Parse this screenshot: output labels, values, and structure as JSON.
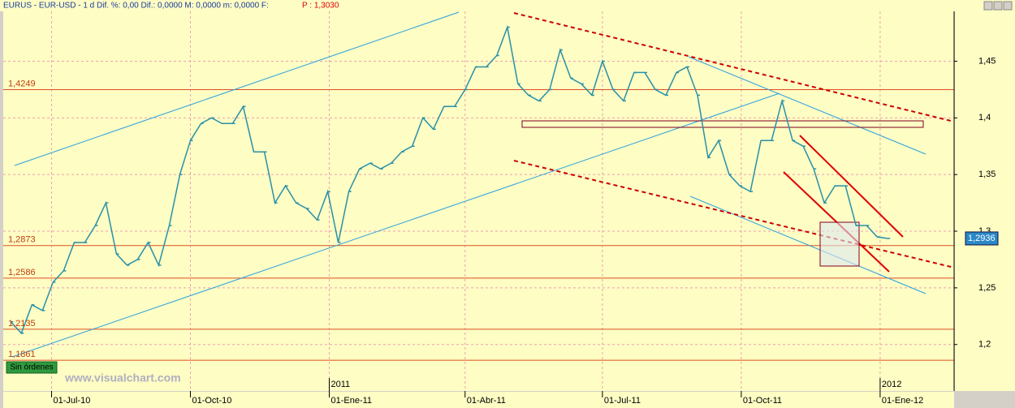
{
  "header": {
    "symbol": "EURUS - EUR-USD - 1 d  Dif. %: 0,00  Dif.: 0,0000  M: 0,0000  m: 0,0000  F:",
    "price": "P : 1,3030"
  },
  "watermark": "www.visualchart.com",
  "orders_badge": "Sin órdenes",
  "chart_data": {
    "type": "line",
    "color": "#2a90a8",
    "xlim": [
      "2010-05-30",
      "2012-02-19"
    ],
    "xticks": [
      {
        "value": "2010-07-01",
        "label": "01-Jul-10"
      },
      {
        "value": "2010-10-01",
        "label": "01-Oct-10"
      },
      {
        "value": "2011-01-01",
        "label": "01-Ene-11"
      },
      {
        "value": "2011-04-01",
        "label": "01-Abr-11"
      },
      {
        "value": "2011-07-01",
        "label": "01-Jul-11"
      },
      {
        "value": "2011-10-01",
        "label": "01-Oct-11"
      },
      {
        "value": "2012-01-01",
        "label": "01-Ene-12"
      }
    ],
    "year_labels": [
      {
        "value": "2011-01-01",
        "label": "2011"
      },
      {
        "value": "2012-01-01",
        "label": "2012"
      }
    ],
    "ylim": [
      1.159,
      1.494
    ],
    "yticks": [
      {
        "value": 1.2,
        "label": "1,2"
      },
      {
        "value": 1.25,
        "label": "1,25"
      },
      {
        "value": 1.3,
        "label": "1,3"
      },
      {
        "value": 1.35,
        "label": "1,35"
      },
      {
        "value": 1.4,
        "label": "1,4"
      },
      {
        "value": 1.45,
        "label": "1,45"
      }
    ],
    "grid": true,
    "levels": [
      {
        "value": 1.4249,
        "label": "1,4249"
      },
      {
        "value": 1.2873,
        "label": "1,2873"
      },
      {
        "value": 1.2586,
        "label": "1,2586"
      },
      {
        "value": 1.2135,
        "label": "1,2135"
      },
      {
        "value": 1.1861,
        "label": "1,1861"
      }
    ],
    "last_price": {
      "value": 1.2936,
      "label": "1,2936"
    },
    "x": [
      "2010-06-04",
      "2010-06-11",
      "2010-06-18",
      "2010-06-25",
      "2010-07-02",
      "2010-07-09",
      "2010-07-16",
      "2010-07-23",
      "2010-07-30",
      "2010-08-06",
      "2010-08-13",
      "2010-08-20",
      "2010-08-27",
      "2010-09-03",
      "2010-09-10",
      "2010-09-17",
      "2010-09-24",
      "2010-10-01",
      "2010-10-08",
      "2010-10-15",
      "2010-10-22",
      "2010-10-29",
      "2010-11-05",
      "2010-11-12",
      "2010-11-19",
      "2010-11-26",
      "2010-12-03",
      "2010-12-10",
      "2010-12-17",
      "2010-12-24",
      "2010-12-31",
      "2011-01-07",
      "2011-01-14",
      "2011-01-21",
      "2011-01-28",
      "2011-02-04",
      "2011-02-11",
      "2011-02-18",
      "2011-02-25",
      "2011-03-04",
      "2011-03-11",
      "2011-03-18",
      "2011-03-25",
      "2011-04-01",
      "2011-04-08",
      "2011-04-15",
      "2011-04-22",
      "2011-04-29",
      "2011-05-06",
      "2011-05-13",
      "2011-05-20",
      "2011-05-27",
      "2011-06-03",
      "2011-06-10",
      "2011-06-17",
      "2011-06-24",
      "2011-07-01",
      "2011-07-08",
      "2011-07-15",
      "2011-07-22",
      "2011-07-29",
      "2011-08-05",
      "2011-08-12",
      "2011-08-19",
      "2011-08-26",
      "2011-09-02",
      "2011-09-09",
      "2011-09-16",
      "2011-09-23",
      "2011-09-30",
      "2011-10-07",
      "2011-10-14",
      "2011-10-21",
      "2011-10-28",
      "2011-11-04",
      "2011-11-11",
      "2011-11-18",
      "2011-11-25",
      "2011-12-02",
      "2011-12-09",
      "2011-12-16",
      "2011-12-23",
      "2011-12-30",
      "2012-01-06"
    ],
    "values": [
      1.22,
      1.21,
      1.235,
      1.23,
      1.255,
      1.265,
      1.29,
      1.29,
      1.305,
      1.325,
      1.28,
      1.27,
      1.275,
      1.29,
      1.27,
      1.305,
      1.35,
      1.38,
      1.395,
      1.4,
      1.395,
      1.395,
      1.41,
      1.37,
      1.37,
      1.325,
      1.34,
      1.325,
      1.32,
      1.31,
      1.335,
      1.29,
      1.335,
      1.355,
      1.36,
      1.355,
      1.36,
      1.37,
      1.375,
      1.4,
      1.39,
      1.41,
      1.41,
      1.425,
      1.445,
      1.445,
      1.455,
      1.48,
      1.43,
      1.42,
      1.415,
      1.425,
      1.46,
      1.435,
      1.43,
      1.42,
      1.45,
      1.425,
      1.415,
      1.44,
      1.44,
      1.425,
      1.42,
      1.44,
      1.445,
      1.42,
      1.365,
      1.38,
      1.35,
      1.34,
      1.335,
      1.38,
      1.38,
      1.415,
      1.38,
      1.375,
      1.355,
      1.325,
      1.34,
      1.34,
      1.305,
      1.305,
      1.295,
      1.2936
    ]
  }
}
